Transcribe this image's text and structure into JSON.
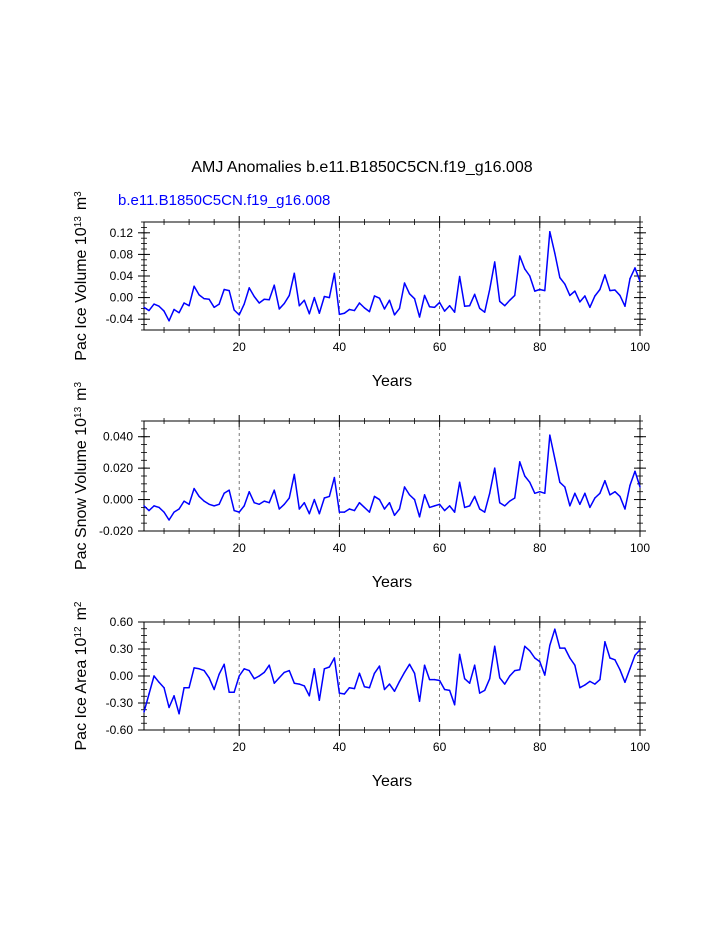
{
  "figure": {
    "title": "AMJ Anomalies b.e11.B1850C5CN.f19_g16.008",
    "subtitle": "b.e11.B1850C5CN.f19_g16.008",
    "line_color": "#0000ff"
  },
  "chart_data": [
    {
      "type": "line",
      "name": "pac-ice-volume",
      "ylabel": "Pac Ice Volume 10",
      "ylabel_exp": "13",
      "ylabel_unit": "m",
      "ylabel_unit_exp": "3",
      "xlabel": "Years",
      "xlim": [
        1,
        100
      ],
      "ylim": [
        -0.06,
        0.14
      ],
      "xticks": [
        20,
        40,
        60,
        80,
        100
      ],
      "xtick_labels": [
        "20",
        "40",
        "60",
        "80",
        "100"
      ],
      "yticks": [
        -0.04,
        0.0,
        0.04,
        0.08,
        0.12
      ],
      "ytick_labels": [
        "-0.04",
        "0.00",
        "0.04",
        "0.08",
        "0.12"
      ],
      "vgrid": [
        20,
        40,
        60,
        80
      ],
      "values": [
        -0.018,
        -0.024,
        -0.012,
        -0.016,
        -0.025,
        -0.043,
        -0.022,
        -0.028,
        -0.01,
        -0.015,
        0.021,
        0.005,
        -0.002,
        -0.003,
        -0.018,
        -0.012,
        0.015,
        0.013,
        -0.023,
        -0.032,
        -0.012,
        0.018,
        0.002,
        -0.01,
        -0.003,
        -0.004,
        0.023,
        -0.021,
        -0.011,
        0.004,
        0.045,
        -0.015,
        -0.005,
        -0.03,
        0.0,
        -0.029,
        0.002,
        0.0,
        0.045,
        -0.031,
        -0.029,
        -0.022,
        -0.024,
        -0.01,
        -0.019,
        -0.026,
        0.003,
        -0.001,
        -0.021,
        -0.005,
        -0.032,
        -0.02,
        0.027,
        0.007,
        -0.002,
        -0.036,
        0.004,
        -0.017,
        -0.018,
        -0.009,
        -0.025,
        -0.015,
        -0.027,
        0.039,
        -0.016,
        -0.015,
        0.006,
        -0.02,
        -0.027,
        0.015,
        0.066,
        -0.007,
        -0.015,
        -0.005,
        0.004,
        0.077,
        0.053,
        0.04,
        0.012,
        0.015,
        0.013,
        0.122,
        0.082,
        0.037,
        0.025,
        0.004,
        0.012,
        -0.008,
        0.003,
        -0.018,
        0.003,
        0.015,
        0.042,
        0.013,
        0.014,
        0.004,
        -0.016,
        0.035,
        0.055,
        0.03
      ]
    },
    {
      "type": "line",
      "name": "pac-snow-volume",
      "ylabel": "Pac Snow Volume 10",
      "ylabel_exp": "13",
      "ylabel_unit": "m",
      "ylabel_unit_exp": "3",
      "xlabel": "Years",
      "xlim": [
        1,
        100
      ],
      "ylim": [
        -0.02,
        0.05
      ],
      "xticks": [
        20,
        40,
        60,
        80,
        100
      ],
      "xtick_labels": [
        "20",
        "40",
        "60",
        "80",
        "100"
      ],
      "yticks": [
        -0.02,
        0.0,
        0.02,
        0.04
      ],
      "ytick_labels": [
        "-0.020",
        "0.000",
        "0.020",
        "0.040"
      ],
      "vgrid": [
        20,
        40,
        60,
        80
      ],
      "values": [
        -0.004,
        -0.007,
        -0.004,
        -0.005,
        -0.008,
        -0.013,
        -0.008,
        -0.006,
        -0.001,
        -0.003,
        0.007,
        0.002,
        -0.001,
        -0.003,
        -0.004,
        -0.003,
        0.004,
        0.006,
        -0.007,
        -0.008,
        -0.004,
        0.005,
        -0.002,
        -0.003,
        -0.001,
        -0.002,
        0.006,
        -0.006,
        -0.003,
        0.001,
        0.016,
        -0.006,
        -0.002,
        -0.009,
        0.0,
        -0.009,
        0.001,
        0.002,
        0.014,
        -0.008,
        -0.008,
        -0.006,
        -0.007,
        -0.002,
        -0.005,
        -0.008,
        0.002,
        0.0,
        -0.006,
        -0.002,
        -0.01,
        -0.006,
        0.008,
        0.003,
        0.0,
        -0.011,
        0.003,
        -0.005,
        -0.004,
        -0.003,
        -0.007,
        -0.004,
        -0.008,
        0.011,
        -0.005,
        -0.004,
        0.002,
        -0.006,
        -0.008,
        0.004,
        0.02,
        -0.002,
        -0.004,
        -0.001,
        0.001,
        0.024,
        0.015,
        0.011,
        0.004,
        0.005,
        0.004,
        0.041,
        0.026,
        0.011,
        0.008,
        -0.004,
        0.004,
        -0.003,
        0.004,
        -0.005,
        0.001,
        0.004,
        0.012,
        0.003,
        0.005,
        0.002,
        -0.006,
        0.009,
        0.018,
        0.008
      ]
    },
    {
      "type": "line",
      "name": "pac-ice-area",
      "ylabel": "Pac Ice Area 10",
      "ylabel_exp": "12",
      "ylabel_unit": "m",
      "ylabel_unit_exp": "2",
      "xlabel": "Years",
      "xlim": [
        1,
        100
      ],
      "ylim": [
        -0.6,
        0.6
      ],
      "xticks": [
        20,
        40,
        60,
        80,
        100
      ],
      "xtick_labels": [
        "20",
        "40",
        "60",
        "80",
        "100"
      ],
      "yticks": [
        -0.6,
        -0.3,
        0.0,
        0.3,
        0.6
      ],
      "ytick_labels": [
        "-0.60",
        "-0.30",
        "0.00",
        "0.30",
        "0.60"
      ],
      "vgrid": [
        20,
        40,
        60,
        80
      ],
      "values": [
        -0.4,
        -0.2,
        0.0,
        -0.07,
        -0.13,
        -0.35,
        -0.22,
        -0.42,
        -0.13,
        -0.13,
        0.09,
        0.08,
        0.06,
        -0.02,
        -0.15,
        0.02,
        0.13,
        -0.18,
        -0.18,
        0.0,
        0.08,
        0.06,
        -0.03,
        0.0,
        0.04,
        0.12,
        -0.08,
        -0.02,
        0.04,
        0.06,
        -0.08,
        -0.09,
        -0.11,
        -0.22,
        0.08,
        -0.27,
        0.08,
        0.1,
        0.2,
        -0.19,
        -0.2,
        -0.13,
        -0.14,
        0.03,
        -0.12,
        -0.13,
        0.03,
        0.11,
        -0.15,
        -0.09,
        -0.17,
        -0.06,
        0.04,
        0.13,
        0.03,
        -0.28,
        0.12,
        -0.04,
        -0.04,
        -0.05,
        -0.15,
        -0.16,
        -0.32,
        0.24,
        -0.03,
        -0.08,
        0.12,
        -0.19,
        -0.16,
        -0.03,
        0.33,
        -0.02,
        -0.09,
        0.0,
        0.06,
        0.07,
        0.33,
        0.28,
        0.2,
        0.16,
        0.01,
        0.34,
        0.52,
        0.31,
        0.31,
        0.2,
        0.12,
        -0.13,
        -0.1,
        -0.06,
        -0.09,
        -0.04,
        0.38,
        0.2,
        0.18,
        0.07,
        -0.07,
        0.08,
        0.23,
        0.29
      ]
    }
  ]
}
